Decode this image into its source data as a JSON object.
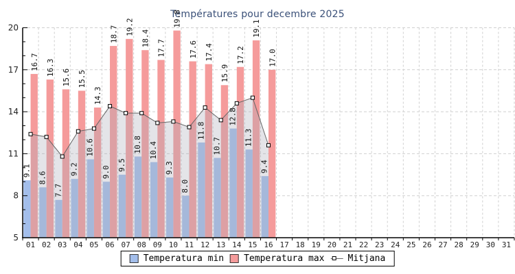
{
  "chart_data": {
    "type": "bar",
    "title": "Températures pour decembre 2025",
    "categories": [
      "01",
      "02",
      "03",
      "04",
      "05",
      "06",
      "07",
      "08",
      "09",
      "10",
      "11",
      "12",
      "13",
      "14",
      "15",
      "16",
      "17",
      "18",
      "19",
      "20",
      "21",
      "22",
      "23",
      "24",
      "25",
      "26",
      "27",
      "28",
      "29",
      "30",
      "31"
    ],
    "series": [
      {
        "name": "Temperatura min",
        "type": "bar",
        "color": "#A3BEEB",
        "values": [
          9.1,
          8.6,
          7.7,
          9.2,
          10.6,
          9.0,
          9.5,
          10.8,
          10.4,
          9.3,
          8.0,
          11.8,
          10.7,
          12.8,
          11.3,
          9.4
        ]
      },
      {
        "name": "Temperatura max",
        "type": "bar",
        "color": "#F59B9B",
        "values": [
          16.7,
          16.3,
          15.6,
          15.5,
          14.3,
          18.7,
          19.2,
          18.4,
          17.7,
          19.8,
          17.6,
          17.4,
          15.9,
          17.2,
          19.1,
          17.0
        ]
      },
      {
        "name": "Mitjana",
        "type": "line",
        "color": "#666666",
        "values": [
          12.4,
          12.2,
          10.8,
          12.6,
          12.8,
          14.4,
          13.9,
          13.9,
          13.2,
          13.3,
          12.9,
          14.3,
          13.4,
          14.6,
          15.0,
          11.6
        ]
      }
    ],
    "ylim": [
      5,
      20
    ],
    "yticks": [
      5,
      8,
      11,
      14,
      17,
      20
    ],
    "grid": true,
    "legend_position": "bottom",
    "colors": {
      "title": "#3A5078",
      "grid": "#CFCFCF",
      "axis": "#000000",
      "tick_text": "#222222",
      "bar_label_text": "#111111",
      "area_fill": "rgba(172,172,182,0.32)",
      "marker_fill": "#FFFFFF",
      "marker_stroke": "#000000"
    }
  }
}
